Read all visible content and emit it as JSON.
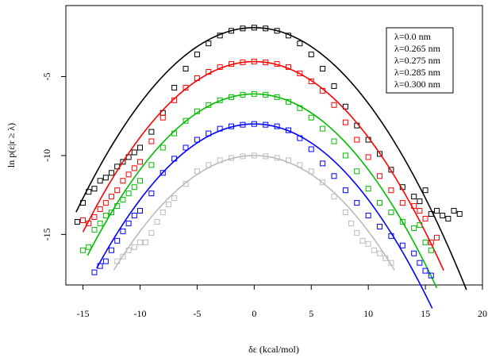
{
  "chart_data": {
    "type": "scatter",
    "xlabel": "δε (kcal/mol)",
    "ylabel": "ln p(ε|r ≥ λ)",
    "xlim": [
      -16.5,
      20
    ],
    "ylim": [
      -18.2,
      -0.5
    ],
    "xticks": [
      -15,
      -10,
      -5,
      0,
      5,
      10,
      15,
      20
    ],
    "yticks": [
      -5,
      -10,
      -15
    ],
    "legend_position": "top-right",
    "legend": [
      "λ=0.0 nm",
      "λ=0.265 nm",
      "λ=0.275 nm",
      "λ=0.285 nm",
      "λ=0.300 nm"
    ],
    "series": [
      {
        "name": "λ=0.0 nm",
        "color": "#000000",
        "points": {
          "x": [
            -15.5,
            -15.0,
            -14.5,
            -14.0,
            -13.5,
            -13.0,
            -12.5,
            -12.0,
            -11.5,
            -11.0,
            -10.5,
            -10.0,
            -9.0,
            -8.0,
            -7.0,
            -6.0,
            -5.0,
            -4.0,
            -3.0,
            -2.0,
            -1.0,
            0.0,
            1.0,
            2.0,
            3.0,
            4.0,
            5.0,
            6.0,
            7.0,
            8.0,
            9.0,
            10.0,
            11.0,
            12.0,
            13.0,
            14.0,
            14.5,
            15.0,
            15.5,
            16.0,
            16.5,
            17.0,
            17.5,
            18.0
          ],
          "y": [
            -14.2,
            -13.0,
            -12.3,
            -12.1,
            -11.6,
            -11.4,
            -11.1,
            -10.7,
            -10.4,
            -10.1,
            -9.8,
            -9.5,
            -8.5,
            -7.3,
            -5.7,
            -4.5,
            -3.6,
            -2.9,
            -2.4,
            -2.1,
            -1.95,
            -1.9,
            -1.95,
            -2.1,
            -2.4,
            -2.9,
            -3.6,
            -4.5,
            -5.6,
            -6.9,
            -8.1,
            -9.0,
            -9.9,
            -10.9,
            -12.0,
            -12.6,
            -12.9,
            -12.2,
            -13.7,
            -13.5,
            -13.8,
            -14.0,
            -13.5,
            -13.7
          ]
        },
        "curve_peak": -1.9,
        "curve_range": [
          -15.6,
          18.6
        ]
      },
      {
        "name": "λ=0.265 nm",
        "color": "#ff0000",
        "points": {
          "x": [
            -15.0,
            -14.5,
            -14.0,
            -13.5,
            -13.0,
            -12.5,
            -12.0,
            -11.5,
            -11.0,
            -10.5,
            -10.0,
            -9.0,
            -8.0,
            -7.0,
            -6.0,
            -5.0,
            -4.0,
            -3.0,
            -2.0,
            -1.0,
            0.0,
            1.0,
            2.0,
            3.0,
            4.0,
            5.0,
            6.0,
            7.0,
            8.0,
            9.0,
            10.0,
            11.0,
            12.0,
            13.0,
            14.0,
            14.5,
            15.0,
            15.5,
            16.0
          ],
          "y": [
            -14.1,
            -14.3,
            -13.9,
            -13.4,
            -13.0,
            -12.6,
            -12.2,
            -11.6,
            -11.2,
            -10.8,
            -10.4,
            -9.1,
            -7.6,
            -6.5,
            -5.7,
            -5.1,
            -4.7,
            -4.4,
            -4.2,
            -4.1,
            -4.05,
            -4.1,
            -4.2,
            -4.4,
            -4.8,
            -5.3,
            -5.9,
            -6.8,
            -7.9,
            -9.0,
            -10.1,
            -11.3,
            -12.2,
            -13.0,
            -13.2,
            -13.5,
            -14.0,
            -15.5,
            -15.2
          ]
        },
        "curve_peak": -4.05,
        "curve_range": [
          -15.0,
          16.6
        ]
      },
      {
        "name": "λ=0.275 nm",
        "color": "#00bb00",
        "points": {
          "x": [
            -15.0,
            -14.5,
            -14.0,
            -13.5,
            -13.0,
            -12.5,
            -12.0,
            -11.5,
            -11.0,
            -10.5,
            -10.0,
            -9.0,
            -8.0,
            -7.0,
            -6.0,
            -5.0,
            -4.0,
            -3.0,
            -2.0,
            -1.0,
            0.0,
            1.0,
            2.0,
            3.0,
            4.0,
            5.0,
            6.0,
            7.0,
            8.0,
            9.0,
            10.0,
            11.0,
            12.0,
            13.0,
            14.0,
            14.5,
            15.0,
            15.5
          ],
          "y": [
            -16.0,
            -15.8,
            -14.7,
            -14.3,
            -13.8,
            -13.6,
            -13.2,
            -12.8,
            -12.4,
            -12.0,
            -11.6,
            -10.6,
            -9.5,
            -8.6,
            -7.8,
            -7.2,
            -6.8,
            -6.5,
            -6.3,
            -6.15,
            -6.1,
            -6.15,
            -6.3,
            -6.6,
            -7.0,
            -7.6,
            -8.3,
            -9.1,
            -10.0,
            -11.0,
            -12.1,
            -13.0,
            -13.6,
            -14.2,
            -14.6,
            -14.4,
            -15.5,
            -16.0
          ]
        },
        "curve_peak": -6.1,
        "curve_range": [
          -14.6,
          16.0
        ]
      },
      {
        "name": "λ=0.285 nm",
        "color": "#0000ff",
        "points": {
          "x": [
            -14.0,
            -13.5,
            -13.0,
            -12.5,
            -12.0,
            -11.5,
            -11.0,
            -10.5,
            -10.0,
            -9.0,
            -8.0,
            -7.0,
            -6.0,
            -5.0,
            -4.0,
            -3.0,
            -2.0,
            -1.0,
            0.0,
            1.0,
            2.0,
            3.0,
            4.0,
            5.0,
            6.0,
            7.0,
            8.0,
            9.0,
            10.0,
            11.0,
            12.0,
            13.0,
            14.0,
            14.5,
            15.0,
            15.5
          ],
          "y": [
            -17.4,
            -17.0,
            -16.7,
            -16.0,
            -15.4,
            -14.8,
            -14.3,
            -13.8,
            -13.5,
            -12.4,
            -11.1,
            -10.2,
            -9.5,
            -9.0,
            -8.6,
            -8.3,
            -8.15,
            -8.05,
            -8.0,
            -8.05,
            -8.15,
            -8.4,
            -8.9,
            -9.6,
            -10.5,
            -11.3,
            -12.2,
            -13.0,
            -13.8,
            -14.5,
            -15.1,
            -15.7,
            -16.2,
            -16.8,
            -17.3,
            -17.6
          ]
        },
        "curve_peak": -8.0,
        "curve_range": [
          -13.8,
          15.6
        ]
      },
      {
        "name": "λ=0.300 nm",
        "color": "#bbbbbb",
        "points": {
          "x": [
            -12.0,
            -11.5,
            -11.0,
            -10.5,
            -10.0,
            -9.5,
            -9.0,
            -8.5,
            -8.0,
            -7.5,
            -7.0,
            -6.0,
            -5.0,
            -4.0,
            -3.0,
            -2.0,
            -1.0,
            0.0,
            1.0,
            2.0,
            3.0,
            4.0,
            5.0,
            6.0,
            7.0,
            8.0,
            8.5,
            9.0,
            9.5,
            10.0,
            10.5,
            11.0,
            11.5,
            12.0
          ],
          "y": [
            -16.7,
            -16.4,
            -16.0,
            -15.8,
            -15.5,
            -15.5,
            -14.9,
            -14.2,
            -13.6,
            -13.1,
            -12.7,
            -11.8,
            -11.0,
            -10.6,
            -10.3,
            -10.15,
            -10.05,
            -10.0,
            -10.05,
            -10.15,
            -10.3,
            -10.6,
            -11.0,
            -11.7,
            -12.6,
            -13.6,
            -14.3,
            -14.9,
            -15.4,
            -15.6,
            -16.0,
            -16.2,
            -16.5,
            -16.8
          ]
        },
        "curve_peak": -10.0,
        "curve_range": [
          -12.3,
          12.3
        ]
      }
    ]
  }
}
